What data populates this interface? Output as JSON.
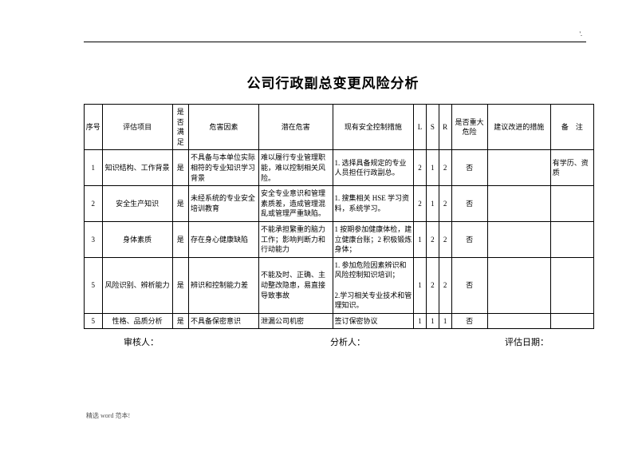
{
  "top_mark": "'.",
  "title": "公司行政副总变更风险分析",
  "headers": {
    "seq": "序号",
    "item": "评估项目",
    "satisfy": "是否满足",
    "factor": "危害因素",
    "hazard": "潜在危害",
    "current": "现有安全控制措施",
    "l": "L",
    "s": "S",
    "r": "R",
    "major": "是否重大危险",
    "suggest": "建议改进的措施",
    "note": "备　注"
  },
  "rows": [
    {
      "seq": "1",
      "item": "知识结构、工作背景",
      "satisfy": "是",
      "factor": "不具备与本单位实际相符的专业知识学习背景",
      "hazard": "难以履行专业管理职能，难以控制相关风险。",
      "current": "1. 选择具备规定的专业人员担任行政副总。",
      "l": "2",
      "s": "1",
      "r": "2",
      "major": "否",
      "suggest": "",
      "note": "有学历、资质"
    },
    {
      "seq": "2",
      "item": "安全生产知识",
      "satisfy": "是",
      "factor": "未经系统的专业安全培训教育",
      "hazard": "安全专业意识和管理素质差，造成管理混乱或管理严重缺陷。",
      "current": "1. 搜集相关 HSE 学习资料，系统学习。",
      "l": "2",
      "s": "1",
      "r": "2",
      "major": "否",
      "suggest": "",
      "note": ""
    },
    {
      "seq": "3",
      "item": "身体素质",
      "satisfy": "是",
      "factor": "存在身心健康缺陷",
      "hazard": "不能承担繁重的脑力工作；影响判断力和行动能力",
      "current": "1 按期参加健康体检，建立健康台账；2 积极锻炼身体；",
      "l": "1",
      "s": "2",
      "r": "2",
      "major": "否",
      "suggest": "",
      "note": ""
    },
    {
      "seq": "5",
      "item": "风险识别、辨析能力",
      "satisfy": "是",
      "factor": "辨识和控制能力差",
      "hazard": "不能及时、正确、主动整改隐患，易直接导致事故",
      "current": "1. 参加危险因素辨识和风险控制知识培训；\n2.学习相关专业技术和管理知识。",
      "l": "1",
      "s": "2",
      "r": "2",
      "major": "否",
      "suggest": "",
      "note": ""
    },
    {
      "seq": "5",
      "item": "性格、品质分析",
      "satisfy": "是",
      "factor": "不具备保密意识",
      "hazard": "泄漏公司机密",
      "current": "签订保密协议",
      "l": "1",
      "s": "1",
      "r": "1",
      "major": "否",
      "suggest": "",
      "note": ""
    }
  ],
  "signatures": {
    "reviewer": "审核人：",
    "analyst": "分析人：",
    "date": "评估日期："
  },
  "footer": "精选 word 范本!"
}
